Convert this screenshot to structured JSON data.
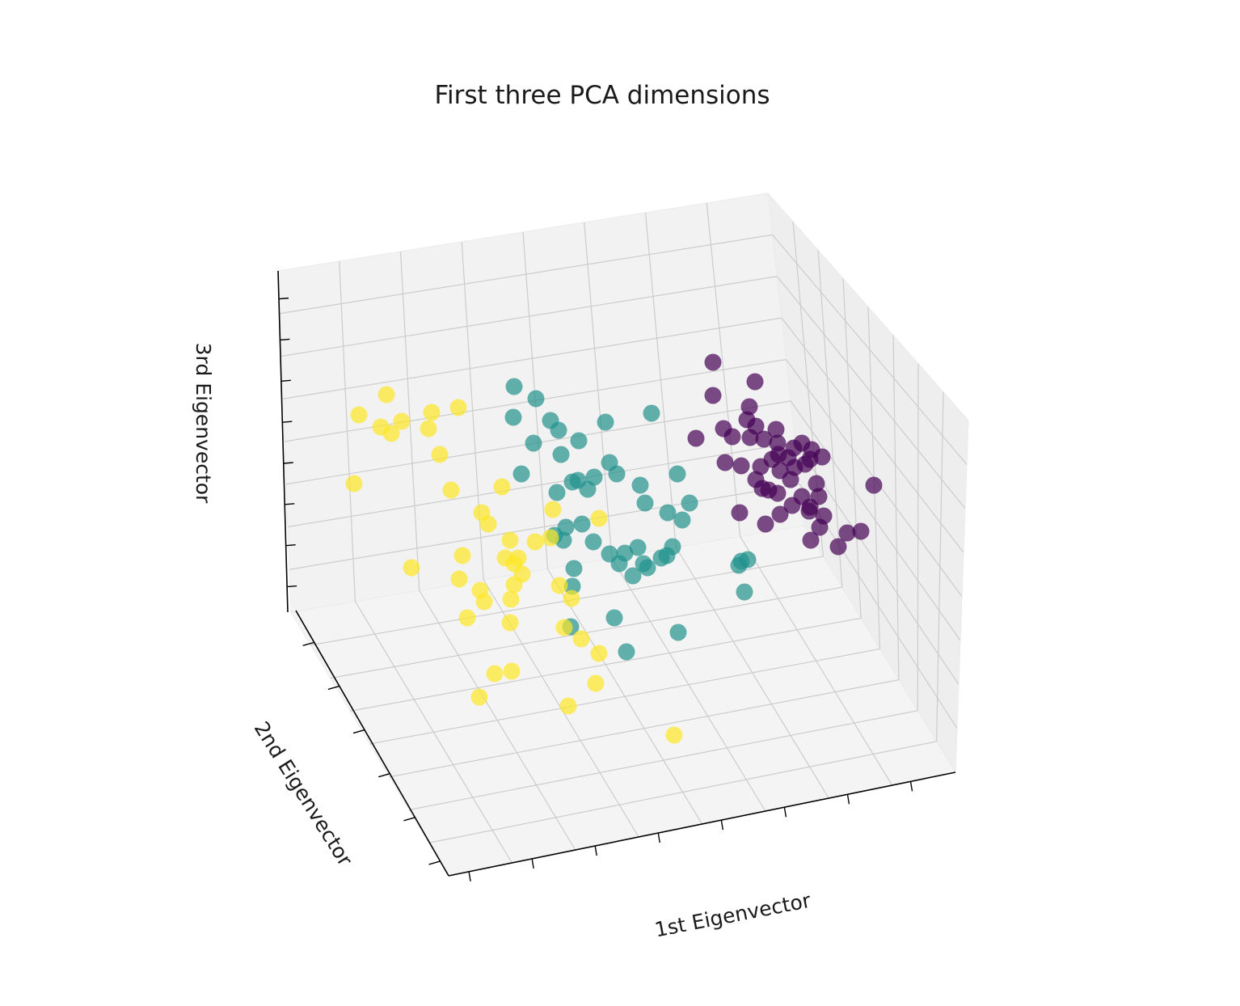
{
  "chart_data": {
    "type": "scatter",
    "projection": "3d",
    "title": "First three PCA dimensions",
    "xlabel": "1st Eigenvector",
    "ylabel": "2nd Eigenvector",
    "zlabel": "3rd Eigenvector",
    "tick_labels_visible": false,
    "grid": true,
    "pane_color": "#f2f2f2",
    "grid_color": "#cccccc",
    "marker_alpha": 0.7,
    "colormap": "viridis",
    "class_colors": [
      "#440154",
      "#21918c",
      "#fde725"
    ],
    "points": [
      [
        882,
        448,
        0
      ],
      [
        934,
        472,
        0
      ],
      [
        882,
        489,
        0
      ],
      [
        927,
        503,
        0
      ],
      [
        924,
        519,
        0
      ],
      [
        895,
        530,
        0
      ],
      [
        935,
        527,
        0
      ],
      [
        960,
        531,
        0
      ],
      [
        861,
        542,
        0
      ],
      [
        906,
        540,
        0
      ],
      [
        928,
        541,
        0
      ],
      [
        962,
        548,
        0
      ],
      [
        945,
        543,
        0
      ],
      [
        982,
        554,
        0
      ],
      [
        963,
        562,
        0
      ],
      [
        992,
        548,
        0
      ],
      [
        1004,
        556,
        0
      ],
      [
        1017,
        565,
        0
      ],
      [
        996,
        574,
        0
      ],
      [
        975,
        566,
        0
      ],
      [
        955,
        568,
        0
      ],
      [
        941,
        577,
        0
      ],
      [
        965,
        582,
        0
      ],
      [
        983,
        578,
        0
      ],
      [
        1002,
        568,
        0
      ],
      [
        917,
        576,
        0
      ],
      [
        897,
        572,
        0
      ],
      [
        935,
        593,
        0
      ],
      [
        951,
        606,
        0
      ],
      [
        943,
        604,
        0
      ],
      [
        962,
        610,
        0
      ],
      [
        978,
        593,
        0
      ],
      [
        1010,
        598,
        0
      ],
      [
        992,
        614,
        0
      ],
      [
        1013,
        614,
        0
      ],
      [
        1002,
        627,
        0
      ],
      [
        1019,
        638,
        0
      ],
      [
        980,
        625,
        0
      ],
      [
        1001,
        632,
        0
      ],
      [
        965,
        636,
        0
      ],
      [
        947,
        648,
        0
      ],
      [
        915,
        634,
        0
      ],
      [
        1014,
        652,
        0
      ],
      [
        1048,
        659,
        0
      ],
      [
        1065,
        657,
        0
      ],
      [
        1003,
        668,
        0
      ],
      [
        1037,
        676,
        0
      ],
      [
        1081,
        600,
        0
      ],
      [
        636,
        478,
        1
      ],
      [
        663,
        493,
        1
      ],
      [
        635,
        516,
        1
      ],
      [
        681,
        520,
        1
      ],
      [
        749,
        522,
        1
      ],
      [
        806,
        511,
        1
      ],
      [
        691,
        532,
        1
      ],
      [
        716,
        545,
        1
      ],
      [
        660,
        548,
        1
      ],
      [
        694,
        562,
        1
      ],
      [
        754,
        572,
        1
      ],
      [
        763,
        586,
        1
      ],
      [
        735,
        590,
        1
      ],
      [
        715,
        594,
        1
      ],
      [
        645,
        586,
        1
      ],
      [
        708,
        596,
        1
      ],
      [
        727,
        605,
        1
      ],
      [
        689,
        609,
        1
      ],
      [
        792,
        600,
        1
      ],
      [
        798,
        622,
        1
      ],
      [
        838,
        586,
        1
      ],
      [
        853,
        622,
        1
      ],
      [
        826,
        634,
        1
      ],
      [
        844,
        643,
        1
      ],
      [
        720,
        648,
        1
      ],
      [
        700,
        652,
        1
      ],
      [
        734,
        670,
        1
      ],
      [
        686,
        662,
        1
      ],
      [
        697,
        668,
        1
      ],
      [
        754,
        685,
        1
      ],
      [
        773,
        684,
        1
      ],
      [
        789,
        677,
        1
      ],
      [
        766,
        697,
        1
      ],
      [
        796,
        697,
        1
      ],
      [
        783,
        712,
        1
      ],
      [
        801,
        702,
        1
      ],
      [
        818,
        690,
        1
      ],
      [
        832,
        676,
        1
      ],
      [
        825,
        687,
        1
      ],
      [
        710,
        703,
        1
      ],
      [
        708,
        725,
        1
      ],
      [
        914,
        699,
        1
      ],
      [
        925,
        692,
        1
      ],
      [
        917,
        694,
        1
      ],
      [
        921,
        732,
        1
      ],
      [
        760,
        764,
        1
      ],
      [
        706,
        775,
        1
      ],
      [
        775,
        806,
        1
      ],
      [
        839,
        782,
        1
      ],
      [
        478,
        488,
        2
      ],
      [
        567,
        504,
        2
      ],
      [
        444,
        513,
        2
      ],
      [
        471,
        528,
        2
      ],
      [
        484,
        536,
        2
      ],
      [
        497,
        521,
        2
      ],
      [
        530,
        530,
        2
      ],
      [
        534,
        510,
        2
      ],
      [
        544,
        562,
        2
      ],
      [
        438,
        598,
        2
      ],
      [
        558,
        606,
        2
      ],
      [
        621,
        602,
        2
      ],
      [
        684,
        630,
        2
      ],
      [
        596,
        634,
        2
      ],
      [
        604,
        648,
        2
      ],
      [
        741,
        641,
        2
      ],
      [
        631,
        668,
        2
      ],
      [
        662,
        670,
        2
      ],
      [
        681,
        665,
        2
      ],
      [
        572,
        687,
        2
      ],
      [
        625,
        690,
        2
      ],
      [
        641,
        690,
        2
      ],
      [
        636,
        697,
        2
      ],
      [
        509,
        702,
        2
      ],
      [
        568,
        716,
        2
      ],
      [
        594,
        730,
        2
      ],
      [
        646,
        710,
        2
      ],
      [
        636,
        723,
        2
      ],
      [
        599,
        744,
        2
      ],
      [
        632,
        741,
        2
      ],
      [
        692,
        724,
        2
      ],
      [
        707,
        740,
        2
      ],
      [
        578,
        764,
        2
      ],
      [
        631,
        770,
        2
      ],
      [
        698,
        776,
        2
      ],
      [
        719,
        790,
        2
      ],
      [
        741,
        808,
        2
      ],
      [
        612,
        833,
        2
      ],
      [
        633,
        830,
        2
      ],
      [
        737,
        845,
        2
      ],
      [
        593,
        862,
        2
      ],
      [
        703,
        873,
        2
      ],
      [
        834,
        909,
        2
      ]
    ]
  }
}
